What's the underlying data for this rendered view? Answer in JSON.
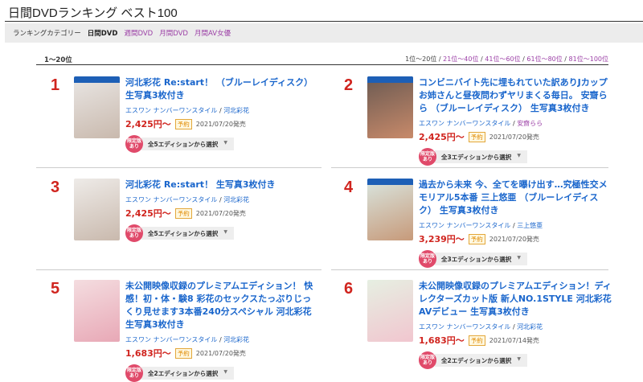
{
  "header": {
    "title": "日間DVDランキング ベスト100"
  },
  "category": {
    "label": "ランキングカテゴリー",
    "current": "日間DVD",
    "links": [
      "週間DVD",
      "月間DVD",
      "月間AV女優"
    ]
  },
  "range": "1〜20位",
  "pager": {
    "current": "1位〜20位",
    "links": [
      "21位〜40位",
      "41位〜60位",
      "61位〜80位",
      "81位〜100位"
    ]
  },
  "items": [
    {
      "rank": "1",
      "title": "河北彩花 Re:start！ （ブルーレイディスク） 生写真3枚付き",
      "maker": "エスワン ナンバーワンスタイル",
      "actress": "河北彩花",
      "price": "2,425円〜",
      "badge": "予約",
      "date": "2021/07/20発売",
      "limited": "限定版あり",
      "editions": "全5エディションから選択",
      "bluray": true,
      "colors": [
        "#e9e6e4",
        "#c9b9ad"
      ]
    },
    {
      "rank": "2",
      "title": "コンビニバイト先に埋もれていた訳ありJカップお姉さんと昼夜問わずヤリまくる毎日。 安齋らら （ブルーレイディスク） 生写真3枚付き",
      "maker": "エスワン ナンバーワンスタイル",
      "actress": "安齋らら",
      "price": "2,425円〜",
      "badge": "予約",
      "date": "2021/07/20発売",
      "limited": "限定版あり",
      "editions": "全3エディションから選択",
      "bluray": true,
      "colors": [
        "#6b5a52",
        "#c88a6a"
      ]
    },
    {
      "rank": "3",
      "title": "河北彩花 Re:start！ 生写真3枚付き",
      "maker": "エスワン ナンバーワンスタイル",
      "actress": "河北彩花",
      "price": "2,425円〜",
      "badge": "予約",
      "date": "2021/07/20発売",
      "limited": "限定版あり",
      "editions": "全5エディションから選択",
      "bluray": false,
      "colors": [
        "#eeebe8",
        "#c9b9ad"
      ]
    },
    {
      "rank": "4",
      "title": "過去から未来 今、全てを曝け出す…究極性交メモリアル5本番 三上悠亜 （ブルーレイディスク） 生写真3枚付き",
      "maker": "エスワン ナンバーワンスタイル",
      "actress": "三上悠亜",
      "price": "3,239円〜",
      "badge": "予約",
      "date": "2021/07/20発売",
      "limited": "限定版あり",
      "editions": "全3エディションから選択",
      "bluray": true,
      "colors": [
        "#d9e6e0",
        "#c79a7a"
      ]
    },
    {
      "rank": "5",
      "title": "未公開映像収録のプレミアムエディション！ 快感！初・体・験8 彩花のセックスたっぷりじっくり見せます3本番240分スペシャル 河北彩花 生写真3枚付き",
      "maker": "エスワン ナンバーワンスタイル",
      "actress": "河北彩花",
      "price": "1,683円〜",
      "badge": "予約",
      "date": "2021/07/20発売",
      "limited": "限定版あり",
      "editions": "全2エディションから選択",
      "bluray": false,
      "colors": [
        "#f4dde0",
        "#e8a8b6"
      ]
    },
    {
      "rank": "6",
      "title": "未公開映像収録のプレミアムエディション！ディレクターズカット版 新人NO.1STYLE 河北彩花AVデビュー 生写真3枚付き",
      "maker": "エスワン ナンバーワンスタイル",
      "actress": "河北彩花",
      "price": "1,683円〜",
      "badge": "予約",
      "date": "2021/07/14発売",
      "limited": "限定版あり",
      "editions": "全2エディションから選択",
      "bluray": false,
      "colors": [
        "#e6efe2",
        "#f1c6cf"
      ]
    }
  ]
}
